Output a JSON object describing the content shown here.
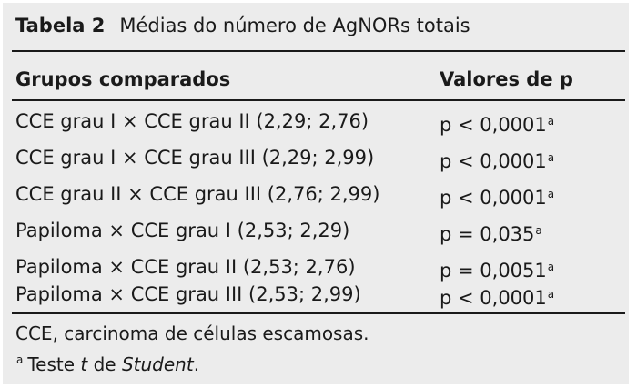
{
  "table": {
    "label": "Tabela 2",
    "title": "Médias do número de AgNORs totais",
    "headers": [
      "Grupos comparados",
      "Valores de p"
    ],
    "rows": [
      {
        "group": "CCE grau I × CCE grau II (2,29; 2,76)",
        "p": "p < 0,0001",
        "mark": "a"
      },
      {
        "group": "CCE grau I × CCE grau III (2,29; 2,99)",
        "p": "p < 0,0001",
        "mark": "a"
      },
      {
        "group": "CCE grau II × CCE grau III (2,76; 2,99)",
        "p": "p < 0,0001",
        "mark": "a"
      },
      {
        "group": "Papiloma × CCE grau I (2,53; 2,29)",
        "p": "p = 0,035",
        "mark": "a"
      },
      {
        "group": "Papiloma × CCE grau II (2,53; 2,76)",
        "p": "p = 0,0051",
        "mark": "a"
      },
      {
        "group": "Papiloma × CCE grau III (2,53; 2,99)",
        "p": "p < 0,0001",
        "mark": "a"
      }
    ],
    "notes": {
      "abbreviation": "CCE, carcinoma de células escamosas.",
      "footnote_mark": "a",
      "footnote_text_1": "Teste ",
      "footnote_italic_1": "t",
      "footnote_text_2": " de ",
      "footnote_italic_2": "Student",
      "footnote_text_3": "."
    }
  }
}
